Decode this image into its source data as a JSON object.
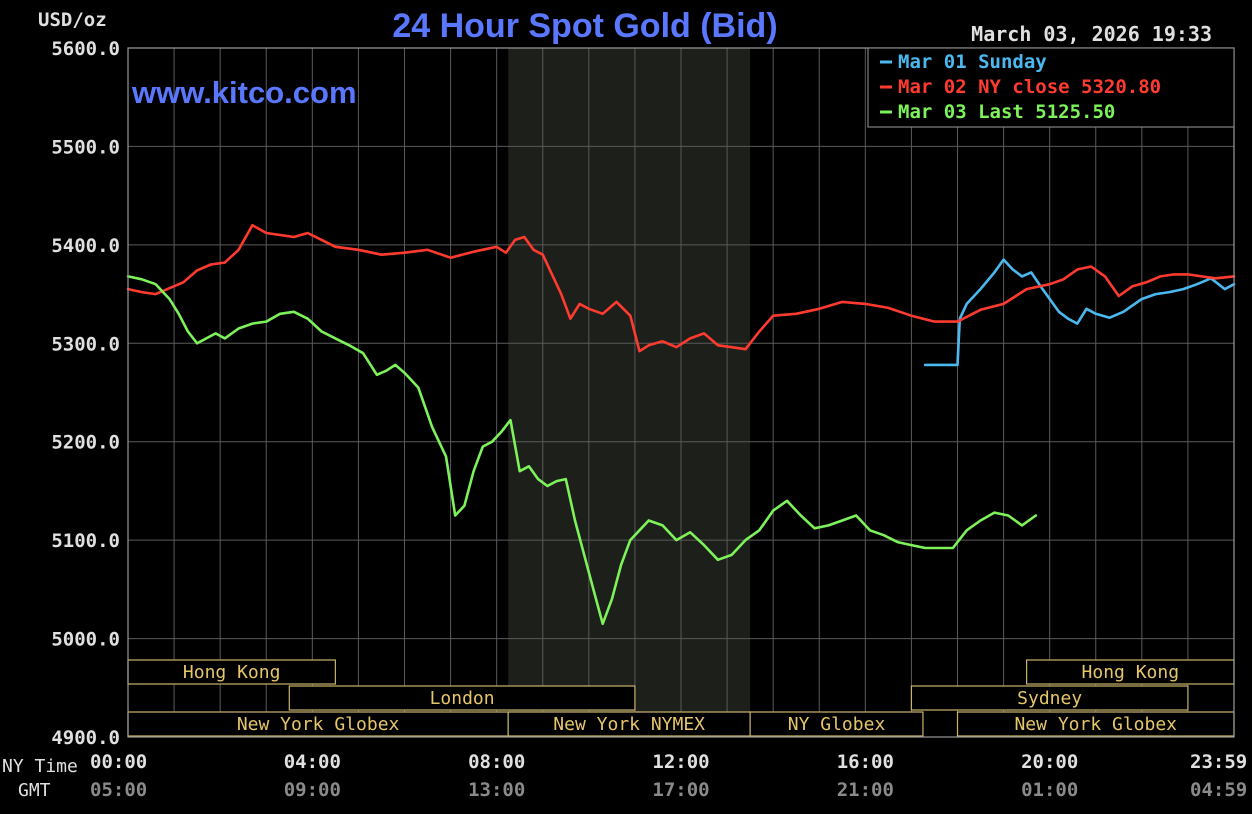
{
  "chart_data": {
    "type": "line",
    "title": "24 Hour Spot Gold (Bid)",
    "unit_label": "USD/oz",
    "source_label": "www.kitco.com",
    "timestamp": "March 03, 2026 19:33",
    "ylim": [
      4900,
      5600
    ],
    "xlim_hours": [
      0,
      24
    ],
    "y_ticks": [
      "5600.0",
      "5500.0",
      "5400.0",
      "5300.0",
      "5200.0",
      "5100.0",
      "5000.0",
      "4900.0"
    ],
    "x_row_labels": {
      "ny": "NY Time",
      "gmt": "GMT"
    },
    "x_ticks_ny": [
      "00:00",
      "04:00",
      "08:00",
      "12:00",
      "16:00",
      "20:00",
      "23:59"
    ],
    "x_ticks_gmt": [
      "05:00",
      "09:00",
      "13:00",
      "17:00",
      "21:00",
      "01:00",
      "04:59"
    ],
    "x_tick_hours": [
      0,
      4,
      8,
      12,
      16,
      20,
      23.983
    ],
    "shaded_hours": [
      8.25,
      13.5
    ],
    "legend": [
      {
        "label": "Mar 01 Sunday",
        "color": "#4bb9f0"
      },
      {
        "label": "Mar 02 NY close 5320.80",
        "color": "#ff3b30"
      },
      {
        "label": "Mar 03 Last 5125.50",
        "color": "#7ef25a"
      }
    ],
    "sessions": [
      {
        "label": "Hong Kong",
        "row": 0,
        "start": 0,
        "end": 4.5
      },
      {
        "label": "Hong Kong",
        "row": 0,
        "start": 19.5,
        "end": 24
      },
      {
        "label": "London",
        "row": 1,
        "start": 3.5,
        "end": 11
      },
      {
        "label": "Sydney",
        "row": 1,
        "start": 17,
        "end": 23
      },
      {
        "label": "New York Globex",
        "row": 2,
        "start": 0,
        "end": 8.25
      },
      {
        "label": "New York NYMEX",
        "row": 2,
        "start": 8.25,
        "end": 13.5
      },
      {
        "label": "NY Globex",
        "row": 2,
        "start": 13.5,
        "end": 17.25
      },
      {
        "label": "New York Globex",
        "row": 2,
        "start": 18,
        "end": 24
      }
    ],
    "series": [
      {
        "name": "Mar 01 Sunday",
        "color": "#4bb9f0",
        "x": [
          17.3,
          18.0,
          18.05,
          18.2,
          18.5,
          18.8,
          19.0,
          19.2,
          19.4,
          19.6,
          19.8,
          20.0,
          20.2,
          20.4,
          20.6,
          20.8,
          21.0,
          21.3,
          21.6,
          22.0,
          22.3,
          22.6,
          22.9,
          23.2,
          23.5,
          23.8,
          24.0
        ],
        "y": [
          5278,
          5278,
          5325,
          5340,
          5355,
          5372,
          5385,
          5375,
          5368,
          5372,
          5358,
          5345,
          5332,
          5325,
          5320,
          5335,
          5330,
          5326,
          5332,
          5345,
          5350,
          5352,
          5355,
          5360,
          5366,
          5355,
          5360
        ]
      },
      {
        "name": "Mar 02 NY close 5320.80",
        "color": "#ff3b30",
        "x": [
          0,
          0.3,
          0.6,
          0.9,
          1.2,
          1.5,
          1.8,
          2.1,
          2.4,
          2.7,
          3.0,
          3.3,
          3.6,
          3.9,
          4.2,
          4.5,
          5.0,
          5.5,
          6.0,
          6.5,
          7.0,
          7.5,
          8.0,
          8.2,
          8.4,
          8.6,
          8.8,
          9.0,
          9.2,
          9.4,
          9.6,
          9.8,
          10.0,
          10.3,
          10.6,
          10.9,
          11.1,
          11.3,
          11.6,
          11.9,
          12.2,
          12.5,
          12.8,
          13.1,
          13.4,
          13.7,
          14.0,
          14.5,
          15.0,
          15.5,
          16.0,
          16.5,
          17.0,
          17.5,
          18.0,
          18.5,
          19.0,
          19.5,
          20.0,
          20.3,
          20.6,
          20.9,
          21.2,
          21.5,
          21.8,
          22.1,
          22.4,
          22.7,
          23.0,
          23.3,
          23.6,
          24.0
        ],
        "y": [
          5355,
          5352,
          5350,
          5356,
          5362,
          5374,
          5380,
          5382,
          5395,
          5420,
          5412,
          5410,
          5408,
          5412,
          5405,
          5398,
          5395,
          5390,
          5392,
          5395,
          5387,
          5393,
          5398,
          5392,
          5405,
          5408,
          5395,
          5390,
          5370,
          5350,
          5325,
          5340,
          5335,
          5330,
          5342,
          5328,
          5292,
          5298,
          5302,
          5296,
          5305,
          5310,
          5298,
          5296,
          5294,
          5312,
          5328,
          5330,
          5335,
          5342,
          5340,
          5336,
          5328,
          5322,
          5322,
          5334,
          5340,
          5355,
          5360,
          5365,
          5375,
          5378,
          5368,
          5348,
          5358,
          5362,
          5368,
          5370,
          5370,
          5368,
          5366,
          5368
        ]
      },
      {
        "name": "Mar 03 Last 5125.50",
        "color": "#7ef25a",
        "x": [
          0,
          0.3,
          0.6,
          0.9,
          1.1,
          1.3,
          1.5,
          1.7,
          1.9,
          2.1,
          2.4,
          2.7,
          3.0,
          3.3,
          3.6,
          3.9,
          4.2,
          4.5,
          4.8,
          5.1,
          5.4,
          5.6,
          5.8,
          6.0,
          6.3,
          6.6,
          6.9,
          7.1,
          7.3,
          7.5,
          7.7,
          7.9,
          8.1,
          8.3,
          8.5,
          8.7,
          8.9,
          9.1,
          9.3,
          9.5,
          9.7,
          9.9,
          10.1,
          10.3,
          10.5,
          10.7,
          10.9,
          11.1,
          11.3,
          11.6,
          11.9,
          12.2,
          12.5,
          12.8,
          13.1,
          13.4,
          13.7,
          14.0,
          14.3,
          14.6,
          14.9,
          15.2,
          15.5,
          15.8,
          16.1,
          16.4,
          16.7,
          17.0,
          17.3,
          17.6,
          17.9,
          18.2,
          18.5,
          18.8,
          19.1,
          19.4,
          19.7
        ],
        "y": [
          5368,
          5365,
          5360,
          5345,
          5330,
          5312,
          5300,
          5305,
          5310,
          5305,
          5315,
          5320,
          5322,
          5330,
          5332,
          5325,
          5312,
          5305,
          5298,
          5290,
          5268,
          5272,
          5278,
          5270,
          5255,
          5215,
          5185,
          5125,
          5135,
          5170,
          5195,
          5200,
          5210,
          5222,
          5170,
          5175,
          5162,
          5155,
          5160,
          5162,
          5120,
          5085,
          5050,
          5015,
          5040,
          5075,
          5100,
          5110,
          5120,
          5115,
          5100,
          5108,
          5095,
          5080,
          5085,
          5100,
          5110,
          5130,
          5140,
          5125,
          5112,
          5115,
          5120,
          5125,
          5110,
          5105,
          5098,
          5095,
          5092,
          5092,
          5092,
          5110,
          5120,
          5128,
          5125,
          5115,
          5125
        ]
      }
    ]
  }
}
